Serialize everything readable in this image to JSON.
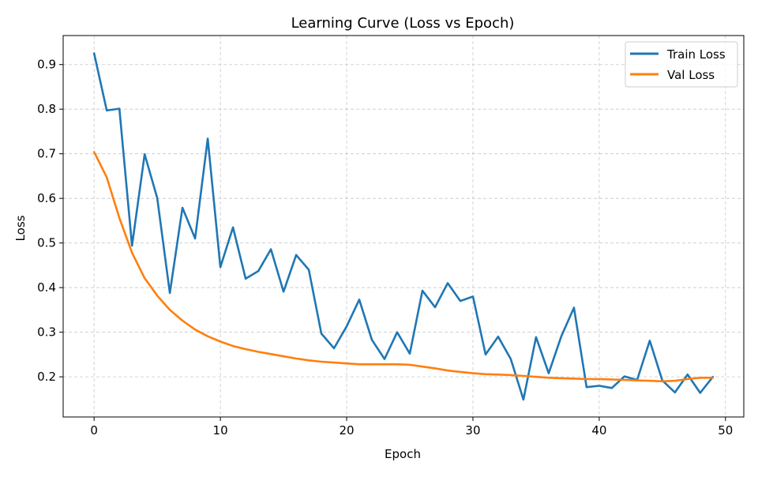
{
  "chart_data": {
    "type": "line",
    "title": "Learning Curve (Loss vs Epoch)",
    "xlabel": "Epoch",
    "ylabel": "Loss",
    "xlim": [
      -2.45,
      51.45
    ],
    "ylim": [
      0.11,
      0.965
    ],
    "xticks": [
      0,
      10,
      20,
      30,
      40,
      50
    ],
    "yticks": [
      0.2,
      0.3,
      0.4,
      0.5,
      0.6,
      0.7,
      0.8,
      0.9
    ],
    "grid": true,
    "legend_position": "top-right",
    "x": [
      0,
      1,
      2,
      3,
      4,
      5,
      6,
      7,
      8,
      9,
      10,
      11,
      12,
      13,
      14,
      15,
      16,
      17,
      18,
      19,
      20,
      21,
      22,
      23,
      24,
      25,
      26,
      27,
      28,
      29,
      30,
      31,
      32,
      33,
      34,
      35,
      36,
      37,
      38,
      39,
      40,
      41,
      42,
      43,
      44,
      45,
      46,
      47,
      48,
      49
    ],
    "series": [
      {
        "name": "Train Loss",
        "color": "#1f77b4",
        "values": [
          0.925,
          0.797,
          0.801,
          0.494,
          0.699,
          0.601,
          0.388,
          0.579,
          0.51,
          0.734,
          0.446,
          0.535,
          0.42,
          0.437,
          0.486,
          0.391,
          0.473,
          0.44,
          0.297,
          0.264,
          0.313,
          0.373,
          0.283,
          0.24,
          0.3,
          0.252,
          0.393,
          0.356,
          0.41,
          0.37,
          0.38,
          0.25,
          0.29,
          0.24,
          0.149,
          0.289,
          0.208,
          0.291,
          0.355,
          0.177,
          0.18,
          0.175,
          0.201,
          0.193,
          0.281,
          0.192,
          0.165,
          0.205,
          0.164,
          0.2
        ]
      },
      {
        "name": "Val Loss",
        "color": "#ff7f0e",
        "values": [
          0.704,
          0.647,
          0.556,
          0.478,
          0.421,
          0.382,
          0.35,
          0.326,
          0.306,
          0.291,
          0.279,
          0.269,
          0.262,
          0.256,
          0.251,
          0.246,
          0.241,
          0.237,
          0.234,
          0.232,
          0.23,
          0.228,
          0.228,
          0.228,
          0.228,
          0.227,
          0.223,
          0.219,
          0.214,
          0.211,
          0.208,
          0.206,
          0.205,
          0.204,
          0.202,
          0.2,
          0.198,
          0.197,
          0.196,
          0.195,
          0.195,
          0.194,
          0.193,
          0.192,
          0.191,
          0.19,
          0.191,
          0.195,
          0.198,
          0.198
        ]
      }
    ]
  }
}
